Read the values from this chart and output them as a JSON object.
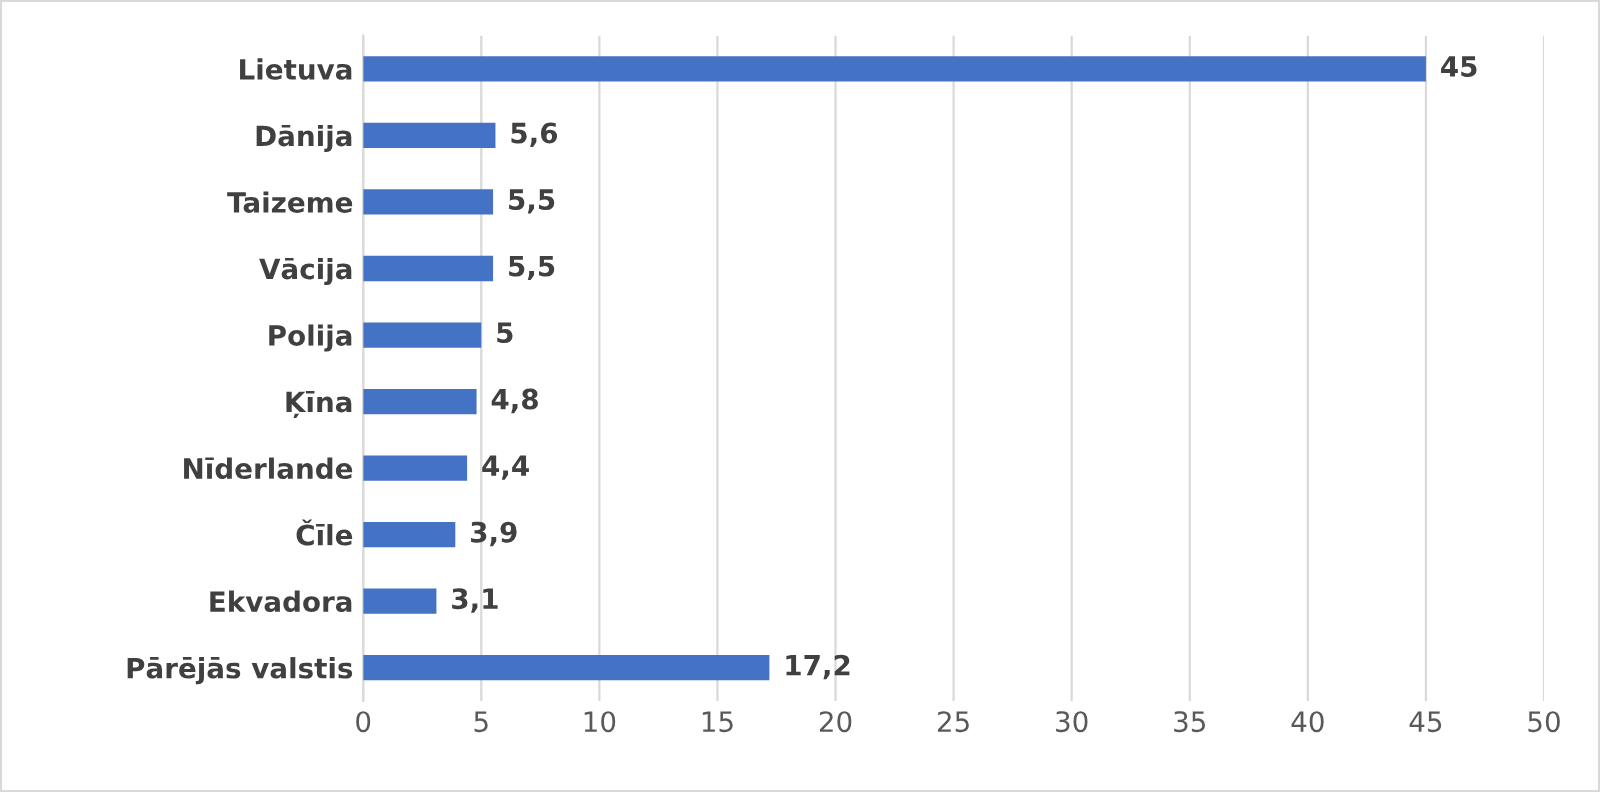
{
  "chart_data": {
    "type": "bar",
    "orientation": "horizontal",
    "categories": [
      "Lietuva",
      "Dānija",
      "Taizeme",
      "Vācija",
      "Polija",
      "Ķīna",
      "Nīderlande",
      "Čīle",
      "Ekvadora",
      "Pārējās valstis"
    ],
    "values": [
      45,
      5.6,
      5.5,
      5.5,
      5,
      4.8,
      4.4,
      3.9,
      3.1,
      17.2
    ],
    "value_labels": [
      "45",
      "5,6",
      "5,5",
      "5,5",
      "5",
      "4,8",
      "4,4",
      "3,9",
      "3,1",
      "17,2"
    ],
    "color": "#4472c4",
    "xlim": [
      0,
      50
    ],
    "xticks": [
      0,
      5,
      10,
      15,
      20,
      25,
      30,
      35,
      40,
      45,
      50
    ],
    "grid": "x"
  }
}
